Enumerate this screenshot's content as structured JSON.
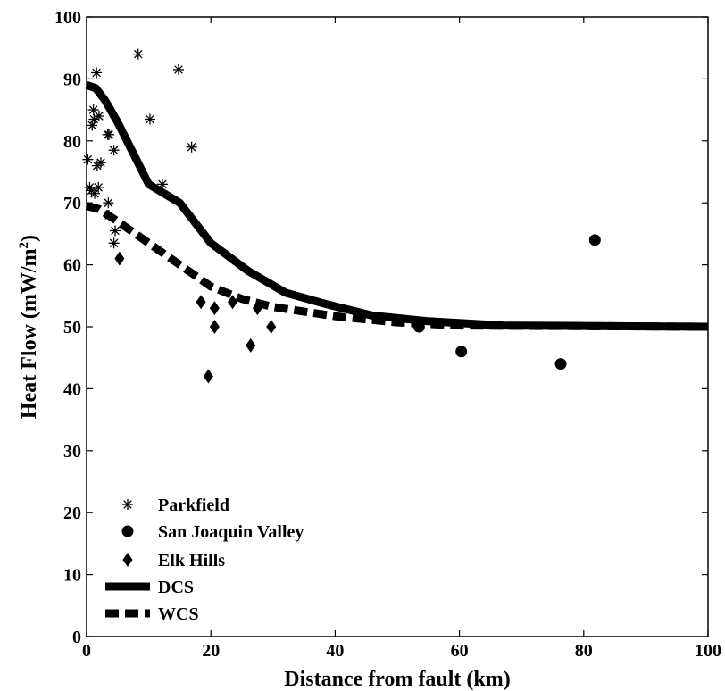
{
  "chart_data": {
    "type": "scatter",
    "xlabel": "Distance from fault (km)",
    "ylabel_main": "Heat Flow (mW/m",
    "ylabel_sup": "2",
    "ylabel_end": ")",
    "xlim": [
      0,
      100
    ],
    "ylim": [
      0,
      100
    ],
    "x_ticks": [
      0,
      20,
      40,
      60,
      80,
      100
    ],
    "y_ticks": [
      0,
      10,
      20,
      30,
      40,
      50,
      60,
      70,
      80,
      90,
      100
    ],
    "grid": false,
    "legend_position": "bottom-left",
    "series": [
      {
        "name": "Parkfield",
        "kind": "scatter",
        "marker": "asterisk",
        "color": "#000000",
        "points": [
          [
            0.2,
            77
          ],
          [
            0.5,
            72.5
          ],
          [
            0.8,
            72
          ],
          [
            0.9,
            82.5
          ],
          [
            1.1,
            85
          ],
          [
            1.2,
            83.5
          ],
          [
            1.3,
            71.5
          ],
          [
            1.6,
            91
          ],
          [
            1.7,
            76
          ],
          [
            1.9,
            72.5
          ],
          [
            2,
            84
          ],
          [
            2.3,
            76.5
          ],
          [
            3.4,
            81
          ],
          [
            3.6,
            81
          ],
          [
            3.5,
            70
          ],
          [
            3.6,
            68
          ],
          [
            4.4,
            78.5
          ],
          [
            4.6,
            65.5
          ],
          [
            4.4,
            63.5
          ],
          [
            8.3,
            94
          ],
          [
            10.2,
            83.5
          ],
          [
            12.2,
            73
          ],
          [
            14.8,
            91.5
          ],
          [
            16.9,
            79
          ]
        ]
      },
      {
        "name": "San Joaquin Valley",
        "kind": "scatter",
        "marker": "circle",
        "color": "#000000",
        "points": [
          [
            53.5,
            50
          ],
          [
            60.3,
            46
          ],
          [
            76.3,
            44
          ],
          [
            81.8,
            64
          ]
        ]
      },
      {
        "name": "Elk Hills",
        "kind": "scatter",
        "marker": "diamond",
        "color": "#000000",
        "points": [
          [
            5.3,
            61
          ],
          [
            18.4,
            54
          ],
          [
            19.6,
            42
          ],
          [
            20.6,
            53
          ],
          [
            20.6,
            50
          ],
          [
            23.5,
            54
          ],
          [
            26.4,
            47
          ],
          [
            27.5,
            53
          ],
          [
            29.7,
            50
          ]
        ]
      },
      {
        "name": "DCS",
        "kind": "line",
        "style": "solid",
        "color": "#000000",
        "points": [
          [
            0,
            89
          ],
          [
            1.5,
            88.5
          ],
          [
            3,
            86.5
          ],
          [
            5,
            83
          ],
          [
            7,
            79
          ],
          [
            10,
            73
          ],
          [
            15,
            70
          ],
          [
            20,
            63.5
          ],
          [
            22,
            62
          ],
          [
            26,
            59
          ],
          [
            32,
            55.5
          ],
          [
            38,
            53.8
          ],
          [
            46,
            51.8
          ],
          [
            55,
            50.9
          ],
          [
            67,
            50.2
          ],
          [
            100,
            50
          ]
        ]
      },
      {
        "name": "WCS",
        "kind": "line",
        "style": "dashed",
        "color": "#000000",
        "points": [
          [
            0,
            69.5
          ],
          [
            2,
            69
          ],
          [
            5,
            67
          ],
          [
            10,
            63.5
          ],
          [
            15,
            60
          ],
          [
            20,
            56.5
          ],
          [
            25,
            54.5
          ],
          [
            30,
            53.2
          ],
          [
            40,
            51.7
          ],
          [
            50,
            50.7
          ],
          [
            60,
            50.2
          ],
          [
            100,
            50
          ]
        ]
      }
    ]
  }
}
